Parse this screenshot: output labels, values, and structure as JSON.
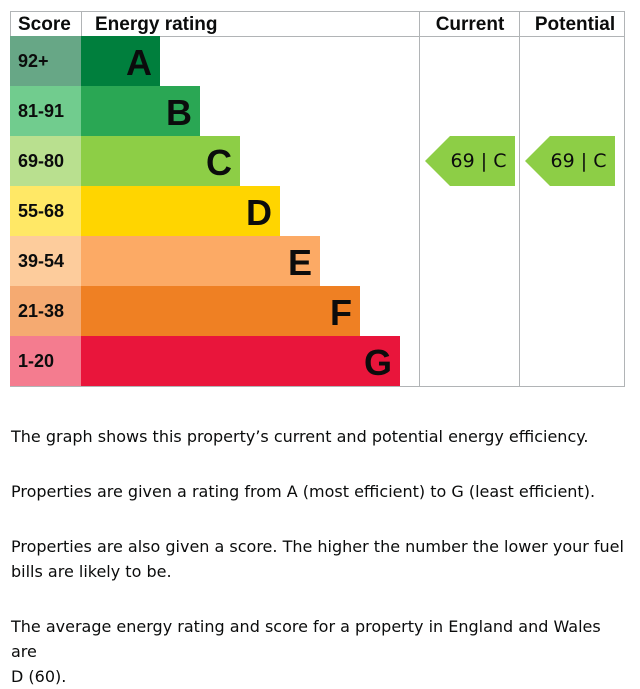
{
  "chart_data": {
    "type": "bar",
    "headers": {
      "score": "Score",
      "rating": "Energy rating",
      "current": "Current",
      "potential": "Potential"
    },
    "bands": [
      {
        "band": "A",
        "range": "92+",
        "color": "#007f3d",
        "score_color": "#67a786"
      },
      {
        "band": "B",
        "range": "81-91",
        "color": "#2aa754",
        "score_color": "#71cc8e"
      },
      {
        "band": "C",
        "range": "69-80",
        "color": "#8dce46",
        "score_color": "#b9e08f"
      },
      {
        "band": "D",
        "range": "55-68",
        "color": "#ffd500",
        "score_color": "#ffe866"
      },
      {
        "band": "E",
        "range": "39-54",
        "color": "#fcaa65",
        "score_color": "#fdcc9c"
      },
      {
        "band": "F",
        "range": "21-38",
        "color": "#ef8023",
        "score_color": "#f5aa71"
      },
      {
        "band": "G",
        "range": "1-20",
        "color": "#e9153b",
        "score_color": "#f47c8f"
      }
    ],
    "current": {
      "score": 69,
      "band": "C",
      "label": "69 | C"
    },
    "potential": {
      "score": 69,
      "band": "C",
      "label": "69 | C"
    }
  },
  "text": {
    "p1": "The graph shows this property’s current and potential energy efficiency.",
    "p2": "Properties are given a rating from A (most efficient) to G (least efficient).",
    "p3_line1": "Properties are also given a score. The higher the number the lower your fuel",
    "p3_line2": "bills are likely to be.",
    "p4_line1": "The average energy rating and score for a property in England and Wales are",
    "p4_line2": "D (60)."
  }
}
